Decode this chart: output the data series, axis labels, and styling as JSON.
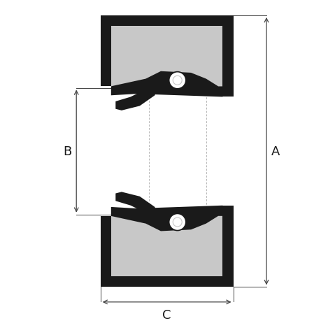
{
  "background_color": "#ffffff",
  "line_color": "#1a1a1a",
  "fill_black": "#1a1a1a",
  "fill_gray": "#c8c8c8",
  "fill_white": "#ffffff",
  "dim_color": "#444444",
  "label_A": "A",
  "label_B": "B",
  "label_C": "C",
  "title_fontsize": 10,
  "label_fontsize": 13,
  "figsize": [
    4.6,
    4.6
  ],
  "dpi": 100,
  "xlim": [
    0,
    10
  ],
  "ylim": [
    0,
    10
  ]
}
